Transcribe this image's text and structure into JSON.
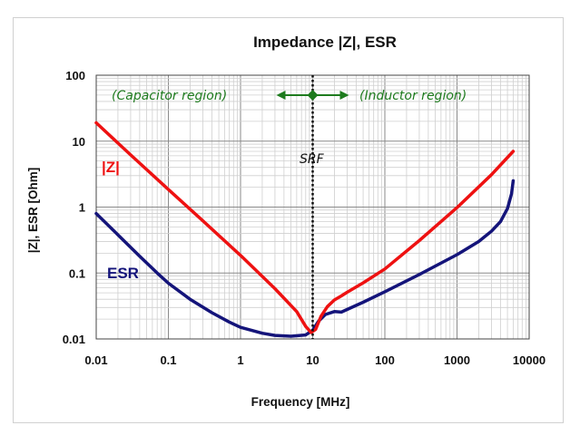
{
  "chart_data": {
    "type": "line",
    "title": "Impedance |Z|,  ESR",
    "xlabel": "Frequency [MHz]",
    "ylabel": "|Z|, ESR [Ohm]",
    "xscale": "log",
    "yscale": "log",
    "xlim": [
      0.01,
      10000
    ],
    "ylim": [
      0.01,
      100
    ],
    "x_ticks": [
      "0.01",
      "0.1",
      "1",
      "10",
      "100",
      "1000",
      "10000"
    ],
    "y_ticks": [
      "100",
      "10",
      "1",
      "0.1",
      "0.01"
    ],
    "grid": true,
    "series": [
      {
        "name": "|Z|",
        "color": "#ee1111",
        "x": [
          0.01,
          0.03,
          0.1,
          0.3,
          1,
          3,
          6,
          8,
          9.5,
          11,
          13,
          16,
          20,
          25,
          30,
          50,
          100,
          300,
          1000,
          3000,
          6000
        ],
        "y": [
          19,
          6.2,
          1.85,
          0.62,
          0.185,
          0.058,
          0.026,
          0.0155,
          0.0125,
          0.014,
          0.022,
          0.031,
          0.039,
          0.045,
          0.051,
          0.071,
          0.115,
          0.31,
          0.98,
          3.1,
          7.0
        ]
      },
      {
        "name": "ESR",
        "color": "#14147a",
        "x": [
          0.01,
          0.02,
          0.04,
          0.07,
          0.1,
          0.2,
          0.4,
          0.7,
          1,
          2,
          3,
          5,
          8,
          10,
          12,
          15,
          20,
          25,
          30,
          50,
          100,
          300,
          1000,
          2000,
          3000,
          4000,
          5000,
          5700,
          6000
        ],
        "y": [
          0.8,
          0.38,
          0.18,
          0.1,
          0.07,
          0.04,
          0.025,
          0.018,
          0.015,
          0.0122,
          0.0113,
          0.011,
          0.0115,
          0.0135,
          0.0185,
          0.0235,
          0.026,
          0.0255,
          0.028,
          0.036,
          0.052,
          0.095,
          0.19,
          0.3,
          0.43,
          0.6,
          0.95,
          1.6,
          2.5
        ]
      }
    ],
    "srf": {
      "x": 10,
      "label": "SRF"
    },
    "annotations": {
      "capacitor": "(Capacitor region)",
      "inductor": "(Inductor region)"
    }
  }
}
